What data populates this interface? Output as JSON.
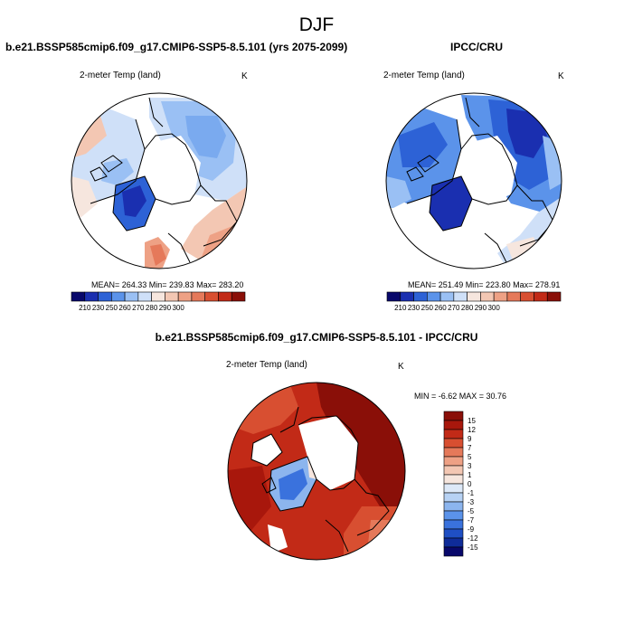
{
  "page_title": "DJF",
  "chart_data": [
    {
      "type": "heatmap",
      "projection": "north polar stereographic",
      "title": "b.e21.BSSP585cmip6.f09_g17.CMIP6-SSP5-8.5.101 (yrs 2075-2099)",
      "variable": "2-meter Temp (land)",
      "units": "K",
      "stats": "MEAN= 264.33  Min= 239.83  Max= 283.20",
      "colorbar": {
        "orientation": "horizontal",
        "levels": [
          "210",
          "230",
          "250",
          "260",
          "270",
          "280",
          "290",
          "300"
        ],
        "colors": [
          "#08086b",
          "#1a2fb0",
          "#2d62d6",
          "#5b93ea",
          "#9ac0f4",
          "#cfe0f8",
          "#f6e6de",
          "#f3c7b3",
          "#eea185",
          "#e5795a",
          "#d84f31",
          "#c22a17",
          "#8a0f08"
        ]
      }
    },
    {
      "type": "heatmap",
      "projection": "north polar stereographic",
      "title": "IPCC/CRU",
      "variable": "2-meter Temp (land)",
      "units": "K",
      "stats": "MEAN= 251.49  Min= 223.80  Max= 278.91",
      "colorbar": {
        "orientation": "horizontal",
        "levels": [
          "210",
          "230",
          "250",
          "260",
          "270",
          "280",
          "290",
          "300"
        ],
        "colors": [
          "#08086b",
          "#1a2fb0",
          "#2d62d6",
          "#5b93ea",
          "#9ac0f4",
          "#cfe0f8",
          "#f6e6de",
          "#f3c7b3",
          "#eea185",
          "#e5795a",
          "#d84f31",
          "#c22a17",
          "#8a0f08"
        ]
      }
    },
    {
      "type": "heatmap",
      "projection": "north polar stereographic",
      "title": "b.e21.BSSP585cmip6.f09_g17.CMIP6-SSP5-8.5.101 - IPCC/CRU",
      "variable": "2-meter Temp (land)",
      "units": "K",
      "stats": "MIN =  -6.62 MAX =  30.76",
      "colorbar": {
        "orientation": "vertical",
        "levels": [
          "15",
          "12",
          "9",
          "7",
          "5",
          "3",
          "1",
          "0",
          "-1",
          "-3",
          "-5",
          "-7",
          "-9",
          "-12",
          "-15"
        ],
        "colors": [
          "#8a0f08",
          "#a8170c",
          "#c22a17",
          "#d84f31",
          "#e5795a",
          "#eea185",
          "#f3c7b3",
          "#f6e6de",
          "#dde9f8",
          "#b7d2f4",
          "#8cb5ee",
          "#5b93ea",
          "#3a72dd",
          "#1f4fc4",
          "#0f2c99",
          "#08086b"
        ]
      }
    }
  ]
}
